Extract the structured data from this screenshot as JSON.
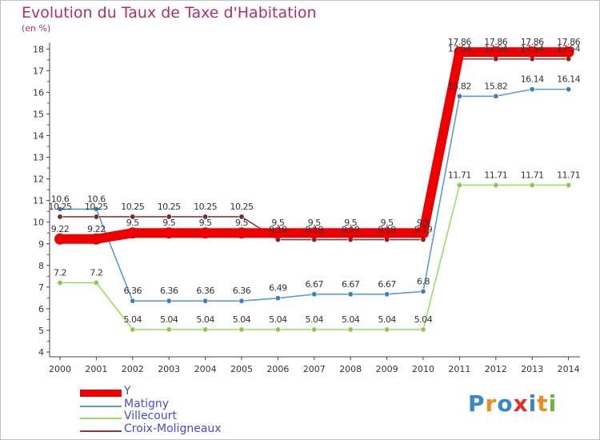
{
  "chart_data": {
    "type": "line",
    "title": "Evolution du Taux de Taxe d'Habitation",
    "ylabel": "(en %)",
    "x": [
      "2000",
      "2001",
      "2002",
      "2003",
      "2004",
      "2005",
      "2006",
      "2007",
      "2008",
      "2009",
      "2010",
      "2011",
      "2012",
      "2013",
      "2014"
    ],
    "yticks": [
      "4",
      "5",
      "6",
      "7",
      "8",
      "9",
      "10",
      "11",
      "12",
      "13",
      "14",
      "15",
      "16",
      "17",
      "18"
    ],
    "ylim": [
      4,
      18
    ],
    "grid": false,
    "legend_position": "bottom-left",
    "series": [
      {
        "name": "Y",
        "color": "#ee0000",
        "values": [
          9.22,
          9.22,
          9.5,
          9.5,
          9.5,
          9.5,
          9.5,
          9.5,
          9.5,
          9.5,
          9.5,
          17.86,
          17.86,
          17.86,
          17.86
        ],
        "labels": [
          "9.22",
          "9.22",
          "9.5",
          "9.5",
          "9.5",
          "9.5",
          "9.5",
          "9.5",
          "9.5",
          "9.5",
          "9.5",
          "17.86",
          "17.86",
          "17.86",
          "17.86"
        ]
      },
      {
        "name": "Matigny",
        "color": "#5b9bd5",
        "values": [
          10.6,
          10.6,
          6.36,
          6.36,
          6.36,
          6.36,
          6.49,
          6.67,
          6.67,
          6.67,
          6.8,
          15.82,
          15.82,
          16.14,
          16.14
        ],
        "labels": [
          "10.6",
          "10.6",
          "6.36",
          "6.36",
          "6.36",
          "6.36",
          "6.49",
          "6.67",
          "6.67",
          "6.67",
          "6.8",
          "15.82",
          "15.82",
          "16.14",
          "16.14"
        ]
      },
      {
        "name": "Villecourt",
        "color": "#99dd66",
        "values": [
          7.2,
          7.2,
          5.04,
          5.04,
          5.04,
          5.04,
          5.04,
          5.04,
          5.04,
          5.04,
          5.04,
          11.71,
          11.71,
          11.71,
          11.71
        ],
        "labels": [
          "7.2",
          "7.2",
          "5.04",
          "5.04",
          "5.04",
          "5.04",
          "5.04",
          "5.04",
          "5.04",
          "5.04",
          "5.04",
          "11.71",
          "11.71",
          "11.71",
          "11.71"
        ]
      },
      {
        "name": "Croix-Moligneaux",
        "color": "#8b3a3a",
        "values": [
          10.25,
          10.25,
          10.25,
          10.25,
          10.25,
          10.25,
          9.19,
          9.19,
          9.19,
          9.19,
          9.19,
          17.54,
          17.54,
          17.54,
          17.54
        ],
        "labels": [
          "10.25",
          "10.25",
          "10.25",
          "10.25",
          "10.25",
          "10.25",
          "9.19",
          "9.19",
          "9.19",
          "9.19",
          "9.19",
          "17.54",
          "17.54",
          "17.54",
          "17.54"
        ]
      }
    ]
  },
  "brand": {
    "logo_letters": [
      "P",
      "r",
      "o",
      "x",
      "i",
      "t",
      "i"
    ],
    "logo_colors": [
      "#3a87c8",
      "#f08a1c",
      "#3a87c8",
      "#e2312a",
      "#3a87c8",
      "#f08a1c",
      "#6cb33f"
    ]
  }
}
